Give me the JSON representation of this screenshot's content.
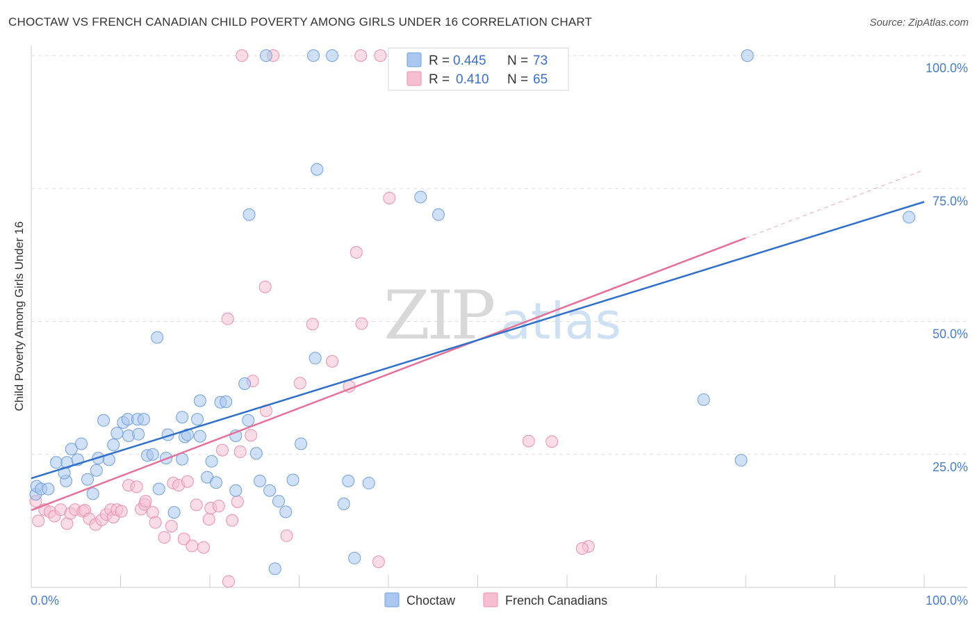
{
  "title": "CHOCTAW VS FRENCH CANADIAN CHILD POVERTY AMONG GIRLS UNDER 16 CORRELATION CHART",
  "source": "Source: ZipAtlas.com",
  "watermark": {
    "zip": "ZIP",
    "atlas": "atlas"
  },
  "stats": {
    "r_label": "R =",
    "n_label": "N =",
    "choctaw": {
      "r": "0.445",
      "n": "73"
    },
    "french": {
      "r": "0.410",
      "n": "65"
    }
  },
  "colors": {
    "choctaw_fill": "#a9c7ef",
    "choctaw_stroke": "#6f9fde",
    "choctaw_line": "#2f6fc9",
    "french_fill": "#f6bfd1",
    "french_stroke": "#ea8fae",
    "french_line": "#e4709a",
    "grid": "#dddddd",
    "tick_text": "#4a7cc9"
  },
  "chart_data": {
    "type": "scatter",
    "title": "CHOCTAW VS FRENCH CANADIAN CHILD POVERTY AMONG GIRLS UNDER 16 CORRELATION CHART",
    "xlabel": "",
    "ylabel": "Child Poverty Among Girls Under 16",
    "xlim": [
      0,
      100
    ],
    "ylim": [
      0,
      100
    ],
    "x_tick_labels": [
      {
        "value": 0,
        "label": "0.0%"
      },
      {
        "value": 100,
        "label": "100.0%"
      }
    ],
    "y_tick_labels": [
      {
        "value": 25,
        "label": "25.0%"
      },
      {
        "value": 50,
        "label": "50.0%"
      },
      {
        "value": 75,
        "label": "75.0%"
      },
      {
        "value": 100,
        "label": "100.0%"
      }
    ],
    "grid": true,
    "legend_position": "bottom-center",
    "series": [
      {
        "name": "Choctaw",
        "trend": {
          "x0": 0,
          "y0": 20.5,
          "x1": 100,
          "y1": 72.5
        },
        "points": [
          [
            0.5,
            17.5
          ],
          [
            0.6,
            19
          ],
          [
            1.1,
            18.5
          ],
          [
            1.9,
            18.5
          ],
          [
            2.8,
            23.5
          ],
          [
            4.0,
            23.5
          ],
          [
            3.9,
            20
          ],
          [
            3.7,
            21.5
          ],
          [
            4.5,
            26
          ],
          [
            5.2,
            24
          ],
          [
            5.6,
            27
          ],
          [
            6.3,
            20.3
          ],
          [
            6.9,
            17.6
          ],
          [
            7.3,
            22
          ],
          [
            7.5,
            24.3
          ],
          [
            8.1,
            31.4
          ],
          [
            8.7,
            24
          ],
          [
            9.2,
            26.8
          ],
          [
            9.6,
            29
          ],
          [
            10.3,
            31
          ],
          [
            10.8,
            31.6
          ],
          [
            10.9,
            28.5
          ],
          [
            11.9,
            31.6
          ],
          [
            12.0,
            28.8
          ],
          [
            12.6,
            31.6
          ],
          [
            13.0,
            24.8
          ],
          [
            13.6,
            25
          ],
          [
            14.3,
            18.5
          ],
          [
            14.1,
            47
          ],
          [
            15.1,
            24.3
          ],
          [
            15.3,
            28.7
          ],
          [
            16.0,
            14.1
          ],
          [
            16.9,
            24.1
          ],
          [
            16.9,
            32
          ],
          [
            17.2,
            28.3
          ],
          [
            17.5,
            28.7
          ],
          [
            18.6,
            31.6
          ],
          [
            18.9,
            35.1
          ],
          [
            18.9,
            28.4
          ],
          [
            19.7,
            20.7
          ],
          [
            20.2,
            23.7
          ],
          [
            20.7,
            19.7
          ],
          [
            21.2,
            34.8
          ],
          [
            21.8,
            34.9
          ],
          [
            22.9,
            18.2
          ],
          [
            22.9,
            28.5
          ],
          [
            23.9,
            38.3
          ],
          [
            24.3,
            31.4
          ],
          [
            24.4,
            70.1
          ],
          [
            25.2,
            25.2
          ],
          [
            25.6,
            20
          ],
          [
            26.7,
            18.2
          ],
          [
            27.3,
            3.5
          ],
          [
            27.7,
            16.2
          ],
          [
            28.5,
            14.2
          ],
          [
            29.3,
            20.2
          ],
          [
            30.2,
            27
          ],
          [
            31.6,
            100
          ],
          [
            31.8,
            43.1
          ],
          [
            32.0,
            78.6
          ],
          [
            33.7,
            100
          ],
          [
            35.0,
            15.7
          ],
          [
            35.5,
            20
          ],
          [
            36.2,
            5.5
          ],
          [
            37.8,
            19.6
          ],
          [
            43.0,
            100
          ],
          [
            43.6,
            73.4
          ],
          [
            45.6,
            70.1
          ],
          [
            75.3,
            35.3
          ],
          [
            80.2,
            100
          ],
          [
            79.5,
            23.9
          ],
          [
            98.3,
            69.6
          ],
          [
            26.3,
            100
          ]
        ]
      },
      {
        "name": "French Canadians",
        "trend": {
          "x0": 0,
          "y0": 14.5,
          "x1": 80,
          "y1": 65.7,
          "dash_to_x": 100,
          "dash_to_y": 78.5
        },
        "points": [
          [
            0.5,
            16.2
          ],
          [
            0.8,
            12.5
          ],
          [
            1.5,
            14.6
          ],
          [
            2.1,
            14.2
          ],
          [
            2.6,
            13.4
          ],
          [
            3.3,
            14.6
          ],
          [
            4.0,
            12
          ],
          [
            4.4,
            13.9
          ],
          [
            4.9,
            14.6
          ],
          [
            5.8,
            14.3
          ],
          [
            6.0,
            14.5
          ],
          [
            6.5,
            12.9
          ],
          [
            7.2,
            11.8
          ],
          [
            7.9,
            12.7
          ],
          [
            8.4,
            13.7
          ],
          [
            8.9,
            14.6
          ],
          [
            9.2,
            13.2
          ],
          [
            9.6,
            14.6
          ],
          [
            10.1,
            14.3
          ],
          [
            10.9,
            19.2
          ],
          [
            11.8,
            18.9
          ],
          [
            12.3,
            14.7
          ],
          [
            12.7,
            15.6
          ],
          [
            12.8,
            16.2
          ],
          [
            13.6,
            14.1
          ],
          [
            13.9,
            12.2
          ],
          [
            14.9,
            9.4
          ],
          [
            15.7,
            11.5
          ],
          [
            15.9,
            19.6
          ],
          [
            16.5,
            19.2
          ],
          [
            17.1,
            9.1
          ],
          [
            17.5,
            19.9
          ],
          [
            18.0,
            7.8
          ],
          [
            18.5,
            15.5
          ],
          [
            19.3,
            7.5
          ],
          [
            19.9,
            12.8
          ],
          [
            20.1,
            14.9
          ],
          [
            21.0,
            15.3
          ],
          [
            21.4,
            25.8
          ],
          [
            22.0,
            50.5
          ],
          [
            22.1,
            1.1
          ],
          [
            22.5,
            12.6
          ],
          [
            23.1,
            16.1
          ],
          [
            23.4,
            25.5
          ],
          [
            24.6,
            28.6
          ],
          [
            24.8,
            38.8
          ],
          [
            26.2,
            56.5
          ],
          [
            26.3,
            33.2
          ],
          [
            27.1,
            100
          ],
          [
            28.6,
            9.7
          ],
          [
            30.1,
            38.4
          ],
          [
            31.5,
            49.5
          ],
          [
            33.7,
            42.5
          ],
          [
            35.6,
            37.8
          ],
          [
            36.4,
            63
          ],
          [
            36.9,
            100
          ],
          [
            37.0,
            49.6
          ],
          [
            38.9,
            4.8
          ],
          [
            39.1,
            100
          ],
          [
            40.1,
            73.2
          ],
          [
            55.7,
            27.5
          ],
          [
            58.3,
            27.4
          ],
          [
            62.4,
            7.7
          ],
          [
            61.7,
            7.3
          ],
          [
            23.6,
            100
          ]
        ]
      }
    ]
  },
  "legend": {
    "choctaw": "Choctaw",
    "french": "French Canadians"
  }
}
